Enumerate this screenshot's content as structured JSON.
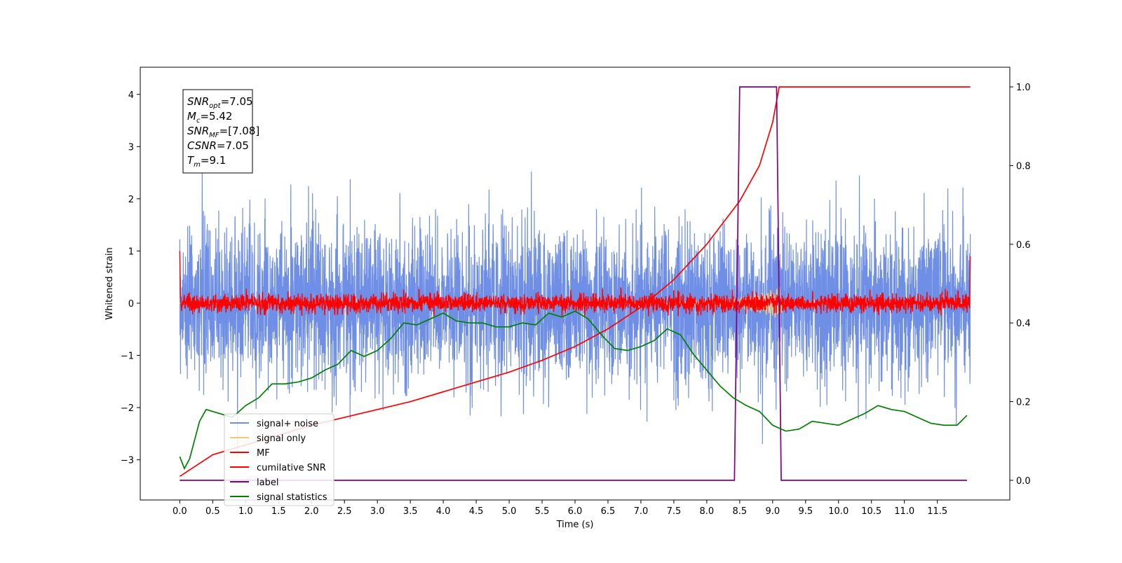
{
  "chart_data": {
    "type": "line",
    "xlabel": "Time (s)",
    "ylabel": "Whitened strain",
    "xlim": [
      -0.6,
      12.6
    ],
    "ylim_left": [
      -3.77,
      4.52
    ],
    "ylim_right": [
      -0.05,
      1.05
    ],
    "x_ticks": [
      "0.0",
      "0.5",
      "1.0",
      "1.5",
      "2.0",
      "2.5",
      "3.0",
      "3.5",
      "4.0",
      "4.5",
      "5.0",
      "5.5",
      "6.0",
      "6.5",
      "7.0",
      "7.5",
      "8.0",
      "8.5",
      "9.0",
      "9.5",
      "10.0",
      "10.5",
      "11.0",
      "11.5"
    ],
    "y_ticks_left": [
      "4",
      "3",
      "2",
      "1",
      "0",
      "−1",
      "−2",
      "−3"
    ],
    "y_ticks_right": [
      "1.0",
      "0.8",
      "0.6",
      "0.4",
      "0.2",
      "0.0"
    ],
    "grid": false,
    "legend_position": "lower-left",
    "annotation": {
      "lines": [
        {
          "var": "SNR",
          "sub": "opt",
          "rest": "=7.05"
        },
        {
          "var": "M",
          "sub": "c",
          "rest": "=5.42"
        },
        {
          "var": "SNR",
          "sub": "MF",
          "rest": "=[7.08]"
        },
        {
          "var": "CSNR",
          "sub": "",
          "rest": "=7.05"
        },
        {
          "var": "T",
          "sub": "m",
          "rest": "=9.1"
        }
      ]
    },
    "series": [
      {
        "name": "signal+ noise",
        "color": "#6f8fe6",
        "axis": "left",
        "kind": "noise",
        "amplitude_std": 0.75,
        "range_approx": [
          -2.9,
          4.2
        ]
      },
      {
        "name": "signal only",
        "color": "#f5c77a",
        "axis": "left",
        "kind": "chirp",
        "peak_time": 9.1,
        "peak_amplitude": 0.35
      },
      {
        "name": "MF",
        "color": "#ff0000",
        "axis": "left",
        "kind": "noise",
        "amplitude_std": 0.09,
        "start_value": 1.0,
        "end_value": 0.9
      },
      {
        "name": "cumilative SNR",
        "color": "#ff0000",
        "axis": "right",
        "x": [
          0.0,
          0.5,
          1.0,
          1.5,
          2.0,
          2.5,
          3.0,
          3.5,
          4.0,
          4.5,
          5.0,
          5.5,
          6.0,
          6.5,
          7.0,
          7.5,
          8.0,
          8.5,
          8.8,
          9.0,
          9.1,
          12.0
        ],
        "y": [
          0.01,
          0.065,
          0.09,
          0.115,
          0.14,
          0.16,
          0.18,
          0.2,
          0.225,
          0.25,
          0.275,
          0.305,
          0.34,
          0.385,
          0.44,
          0.51,
          0.6,
          0.71,
          0.8,
          0.91,
          1.0,
          1.0
        ]
      },
      {
        "name": "label",
        "color": "#800080",
        "axis": "right",
        "x": [
          0.0,
          8.42,
          8.5,
          9.06,
          9.13,
          11.95
        ],
        "y": [
          0.0,
          0.0,
          1.0,
          1.0,
          0.0,
          0.0
        ]
      },
      {
        "name": "signal statistics",
        "color": "#008000",
        "axis": "right",
        "x": [
          0.0,
          0.07,
          0.15,
          0.3,
          0.4,
          0.6,
          0.8,
          1.0,
          1.2,
          1.4,
          1.6,
          1.8,
          2.0,
          2.2,
          2.4,
          2.6,
          2.8,
          3.0,
          3.2,
          3.4,
          3.6,
          3.8,
          4.0,
          4.2,
          4.4,
          4.6,
          4.8,
          5.0,
          5.2,
          5.4,
          5.6,
          5.8,
          6.0,
          6.2,
          6.4,
          6.6,
          6.8,
          7.0,
          7.2,
          7.4,
          7.6,
          7.8,
          8.0,
          8.2,
          8.4,
          8.6,
          8.8,
          9.0,
          9.2,
          9.4,
          9.6,
          9.8,
          10.0,
          10.2,
          10.4,
          10.6,
          10.8,
          11.0,
          11.2,
          11.4,
          11.6,
          11.8,
          11.95
        ],
        "y": [
          0.06,
          0.03,
          0.055,
          0.15,
          0.18,
          0.17,
          0.16,
          0.19,
          0.21,
          0.245,
          0.245,
          0.25,
          0.26,
          0.28,
          0.295,
          0.33,
          0.315,
          0.33,
          0.36,
          0.4,
          0.395,
          0.41,
          0.425,
          0.405,
          0.4,
          0.4,
          0.39,
          0.39,
          0.4,
          0.395,
          0.425,
          0.415,
          0.43,
          0.41,
          0.37,
          0.335,
          0.33,
          0.34,
          0.355,
          0.385,
          0.37,
          0.32,
          0.28,
          0.24,
          0.21,
          0.19,
          0.175,
          0.14,
          0.125,
          0.13,
          0.15,
          0.145,
          0.14,
          0.155,
          0.17,
          0.19,
          0.18,
          0.175,
          0.16,
          0.145,
          0.14,
          0.14,
          0.165
        ]
      }
    ]
  }
}
